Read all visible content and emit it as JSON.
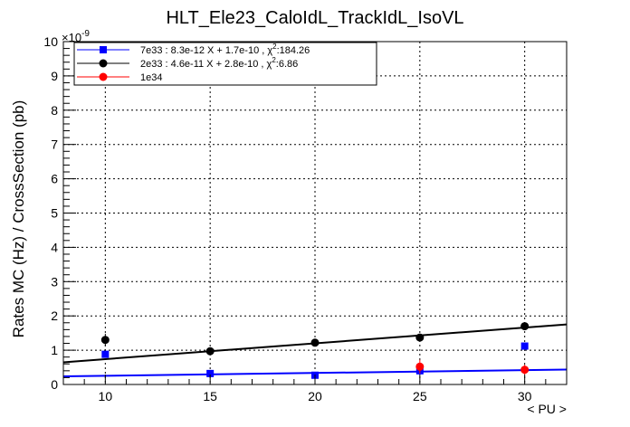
{
  "chart_data": {
    "type": "scatter",
    "title": "HLT_Ele23_CaloIdL_TrackIdL_IsoVL",
    "xlabel": "< PU >",
    "ylabel": "Rates MC (Hz) / CrossSection (pb)",
    "y_exponent_label": "×10",
    "y_exponent": "-9",
    "xlim": [
      8,
      32
    ],
    "ylim": [
      0,
      10
    ],
    "x_ticks": [
      10,
      15,
      20,
      25,
      30
    ],
    "y_ticks": [
      0,
      1,
      2,
      3,
      4,
      5,
      6,
      7,
      8,
      9,
      10
    ],
    "grid": true,
    "legend_position": "top-left",
    "series": [
      {
        "name": "7e33 : 8.3e-12 X + 1.7e-10 , χ²:184.26",
        "label_main": "7e33 : 8.3e-12 X + 1.7e-10 , χ",
        "label_sup": "2",
        "label_tail": ":184.26",
        "color": "#0000ff",
        "marker": "square",
        "x": [
          10,
          15,
          20,
          25,
          30
        ],
        "y": [
          0.88,
          0.32,
          0.27,
          0.4,
          1.12
        ],
        "yerr": [
          0.1,
          0.06,
          0.06,
          0.12,
          0.1
        ],
        "fit": {
          "slope": 0.0083,
          "intercept": 0.17
        }
      },
      {
        "name": "2e33 : 4.6e-11 X + 2.8e-10 , χ²:6.86",
        "label_main": "2e33 : 4.6e-11 X + 2.8e-10 , χ",
        "label_sup": "2",
        "label_tail": ":6.86",
        "color": "#000000",
        "marker": "circle",
        "x": [
          10,
          15,
          20,
          25,
          30
        ],
        "y": [
          1.3,
          0.97,
          1.22,
          1.37,
          1.7
        ],
        "yerr": [
          0.18,
          0.07,
          0.06,
          0.07,
          0.07
        ],
        "fit": {
          "slope": 0.046,
          "intercept": 0.28
        }
      },
      {
        "name": "1e34",
        "label_main": "1e34",
        "label_sup": "",
        "label_tail": "",
        "color": "#ff0000",
        "marker": "circle",
        "x": [
          25,
          30
        ],
        "y": [
          0.52,
          0.43
        ],
        "yerr": [
          0.2,
          0.15
        ],
        "fit": null
      }
    ]
  }
}
